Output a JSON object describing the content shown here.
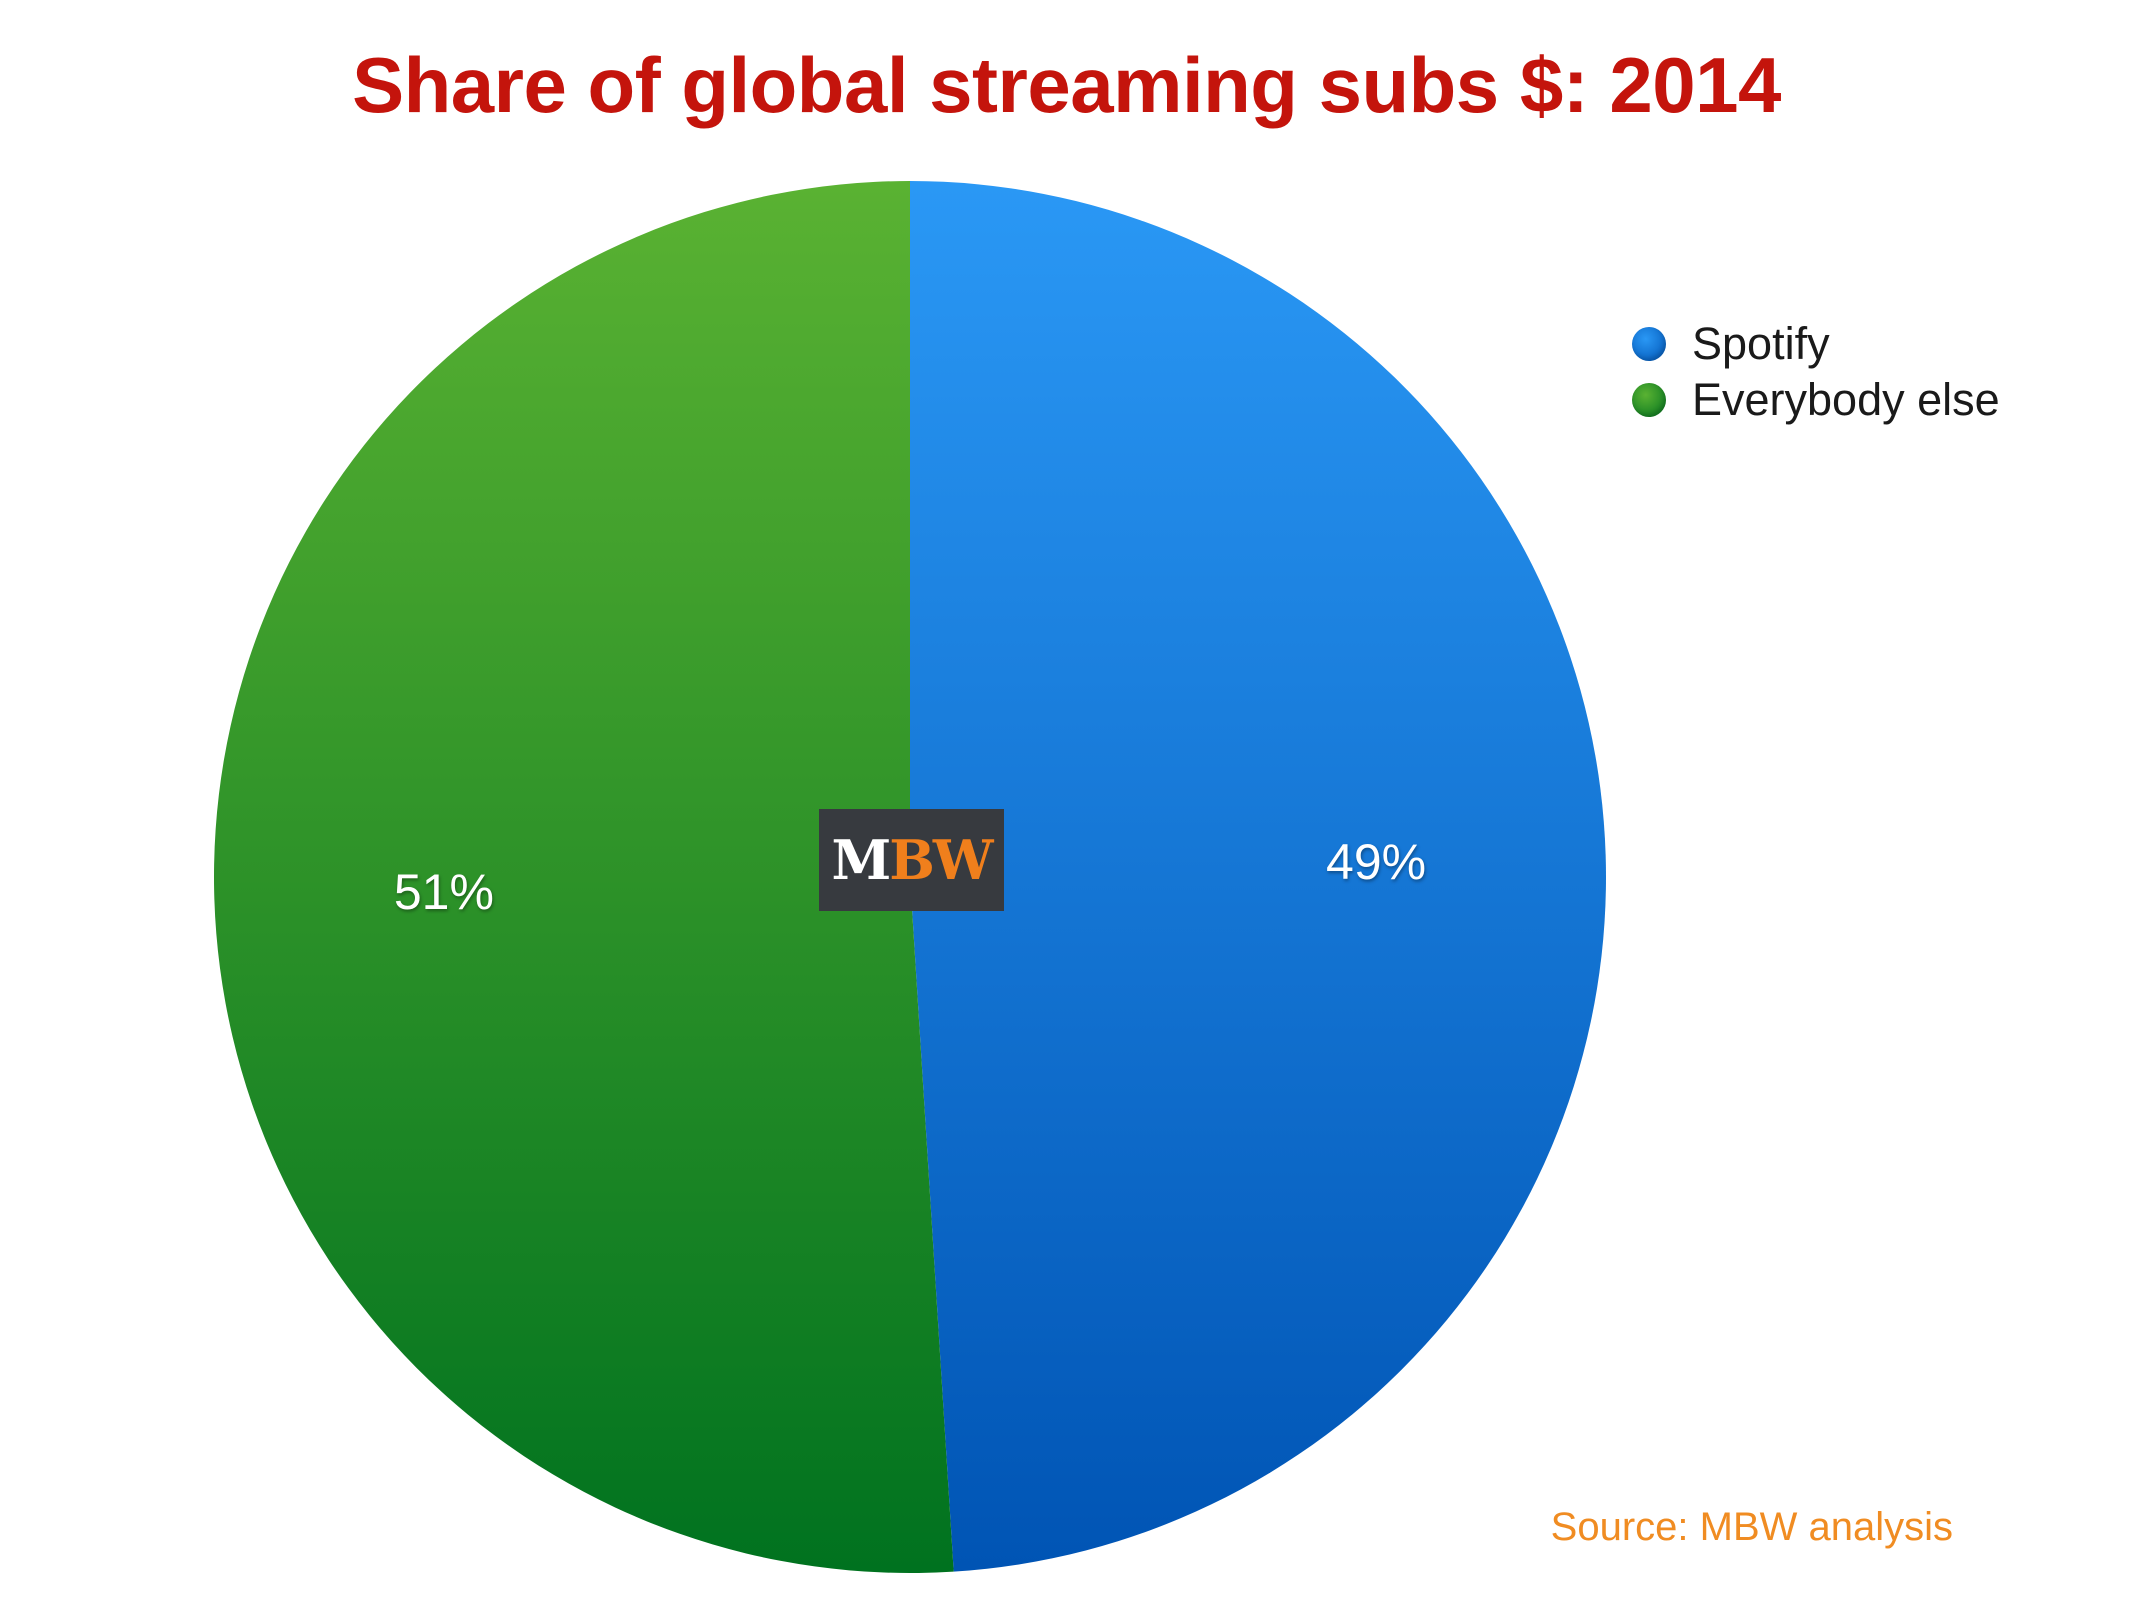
{
  "chart_data": {
    "type": "pie",
    "title": "Share of global streaming subs $: 2014",
    "slices": [
      {
        "name": "Spotify",
        "value": 49,
        "label": "49%",
        "color": "#1a86e8"
      },
      {
        "name": "Everybody else",
        "value": 51,
        "label": "51%",
        "color": "#2e962a"
      }
    ],
    "legend_position": "top-right"
  },
  "colors": {
    "title": "#c4140c",
    "source": "#f08c22",
    "spotify_top": "#2a98f5",
    "spotify_bottom": "#0054b4",
    "other_top": "#5ab232",
    "other_bottom": "#00721f"
  },
  "logo": {
    "text_m": "M",
    "text_bw": "BW"
  },
  "source": "Source: MBW analysis"
}
